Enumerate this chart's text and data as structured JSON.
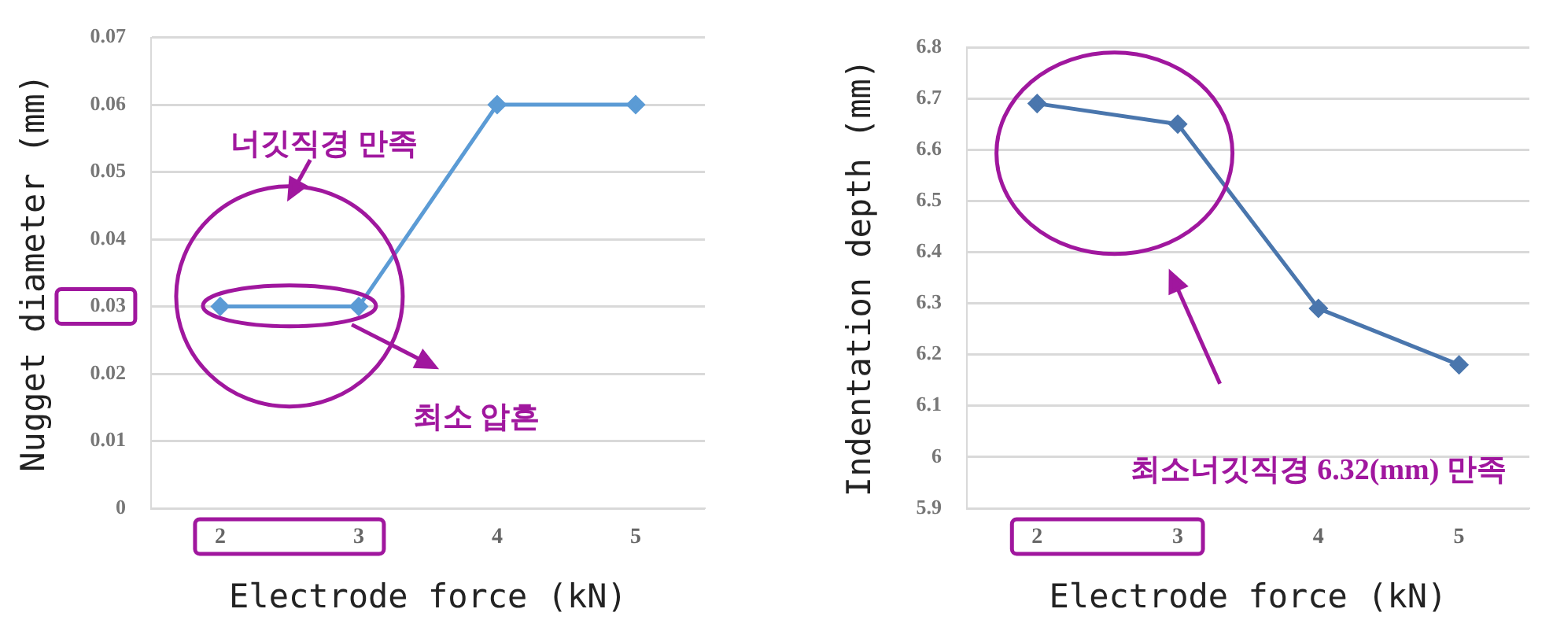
{
  "chart_data": [
    {
      "type": "line",
      "xlabel": "Electrode force (kN)",
      "ylabel": "Nugget diameter (mm)",
      "categories": [
        "2",
        "3",
        "4",
        "5"
      ],
      "series": [
        {
          "color": "#5b9bd5",
          "values": [
            0.03,
            0.03,
            0.06,
            0.06
          ]
        }
      ],
      "ylim": [
        0,
        0.07
      ],
      "yticks": [
        0,
        0.01,
        0.02,
        0.03,
        0.04,
        0.05,
        0.06,
        0.07
      ],
      "grid": "y",
      "marker": "diamond",
      "line_style": "solid",
      "legend": false,
      "annotations": [
        "너깃직경 만족",
        "최소 압흔"
      ]
    },
    {
      "type": "line",
      "xlabel": "Electrode force (kN)",
      "ylabel": "Indentation depth (mm)",
      "categories": [
        "2",
        "3",
        "4",
        "5"
      ],
      "series": [
        {
          "color": "#4a76ad",
          "values": [
            6.69,
            6.65,
            6.29,
            6.18
          ]
        }
      ],
      "ylim": [
        5.9,
        6.8
      ],
      "yticks": [
        5.9,
        6,
        6.1,
        6.2,
        6.3,
        6.4,
        6.5,
        6.6,
        6.7,
        6.8
      ],
      "grid": "y",
      "marker": "diamond",
      "line_style": "solid",
      "legend": false,
      "annotations": [
        "최소너깃직경 6.32(mm) 만족"
      ]
    }
  ]
}
